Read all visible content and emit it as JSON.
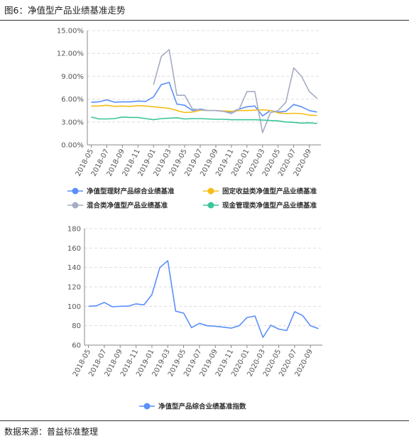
{
  "title": "图6：净值型产品业绩基准走势",
  "source": "数据来源：普益标准整理",
  "x_labels": [
    "2018-05",
    "2018-07",
    "2018-09",
    "2018-11",
    "2019-01",
    "2019-03",
    "2019-05",
    "2019-07",
    "2019-09",
    "2019-11",
    "2020-01",
    "2020-03",
    "2020-05",
    "2020-07",
    "2020-09"
  ],
  "chart_data": [
    {
      "type": "line",
      "ylim": [
        0,
        15
      ],
      "y_ticks": [
        "0.00%",
        "3.00%",
        "6.00%",
        "9.00%",
        "12.00%",
        "15.00%"
      ],
      "grid": true,
      "legend_position": "bottom",
      "x": [
        "2018-05",
        "2018-06",
        "2018-07",
        "2018-08",
        "2018-09",
        "2018-10",
        "2018-11",
        "2018-12",
        "2019-01",
        "2019-02",
        "2019-03",
        "2019-04",
        "2019-05",
        "2019-06",
        "2019-07",
        "2019-08",
        "2019-09",
        "2019-10",
        "2019-11",
        "2019-12",
        "2020-01",
        "2020-02",
        "2020-03",
        "2020-04",
        "2020-05",
        "2020-06",
        "2020-07",
        "2020-08",
        "2020-09",
        "2020-10"
      ],
      "series": [
        {
          "name": "净值型理财产品综合业绩基准",
          "color": "#5b8ff9",
          "values": [
            5.6,
            5.65,
            5.9,
            5.6,
            5.65,
            5.65,
            5.75,
            5.7,
            6.3,
            7.9,
            8.2,
            5.35,
            5.2,
            4.5,
            4.7,
            4.5,
            4.5,
            4.4,
            4.3,
            4.7,
            5.0,
            5.1,
            3.8,
            4.5,
            4.3,
            4.4,
            5.3,
            5.0,
            4.5,
            4.3
          ]
        },
        {
          "name": "固定收益类净值型产品业绩基准",
          "color": "#f6bd16",
          "values": [
            5.1,
            5.1,
            5.2,
            5.05,
            5.1,
            5.05,
            5.15,
            5.1,
            5.0,
            4.9,
            4.8,
            4.5,
            4.25,
            4.3,
            4.55,
            4.5,
            4.5,
            4.45,
            4.4,
            4.5,
            4.5,
            4.55,
            4.6,
            4.5,
            4.2,
            4.1,
            4.15,
            4.1,
            3.9,
            3.85
          ]
        },
        {
          "name": "混合类净值型产品业绩基准",
          "color": "#a5acc4",
          "values": [
            null,
            null,
            null,
            null,
            null,
            null,
            null,
            null,
            7.9,
            11.6,
            12.5,
            6.5,
            6.5,
            4.7,
            4.6,
            4.5,
            4.5,
            4.4,
            4.1,
            4.7,
            7.0,
            7.0,
            1.6,
            4.2,
            4.5,
            5.6,
            10.1,
            9.0,
            7.0,
            6.1
          ]
        },
        {
          "name": "现金管理类净值型产品业绩基准",
          "color": "#3ac59a",
          "values": [
            3.65,
            3.4,
            3.4,
            3.45,
            3.65,
            3.6,
            3.6,
            3.45,
            3.3,
            3.45,
            3.5,
            3.55,
            3.4,
            3.45,
            3.45,
            3.4,
            3.35,
            3.35,
            3.3,
            3.3,
            3.3,
            3.3,
            3.25,
            3.2,
            3.15,
            3.0,
            2.95,
            2.85,
            2.9,
            2.8
          ]
        }
      ]
    },
    {
      "type": "line",
      "ylim": [
        60,
        180
      ],
      "y_ticks": [
        "60",
        "80",
        "100",
        "120",
        "140",
        "160",
        "180"
      ],
      "grid": true,
      "legend_position": "bottom",
      "x": [
        "2018-05",
        "2018-06",
        "2018-07",
        "2018-08",
        "2018-09",
        "2018-10",
        "2018-11",
        "2018-12",
        "2019-01",
        "2019-02",
        "2019-03",
        "2019-04",
        "2019-05",
        "2019-06",
        "2019-07",
        "2019-08",
        "2019-09",
        "2019-10",
        "2019-11",
        "2019-12",
        "2020-01",
        "2020-02",
        "2020-03",
        "2020-04",
        "2020-05",
        "2020-06",
        "2020-07",
        "2020-08",
        "2020-09",
        "2020-10"
      ],
      "series": [
        {
          "name": "净值型产品综合业绩基准指数",
          "color": "#5b8ff9",
          "values": [
            100,
            100.5,
            104,
            99.5,
            100,
            100.2,
            102.5,
            101.5,
            112,
            140,
            147,
            95,
            93,
            78,
            82.5,
            80,
            79.5,
            78.5,
            77.5,
            80,
            88.5,
            90,
            68,
            80.5,
            76.5,
            75,
            94.5,
            90.5,
            80,
            77
          ]
        }
      ]
    }
  ]
}
